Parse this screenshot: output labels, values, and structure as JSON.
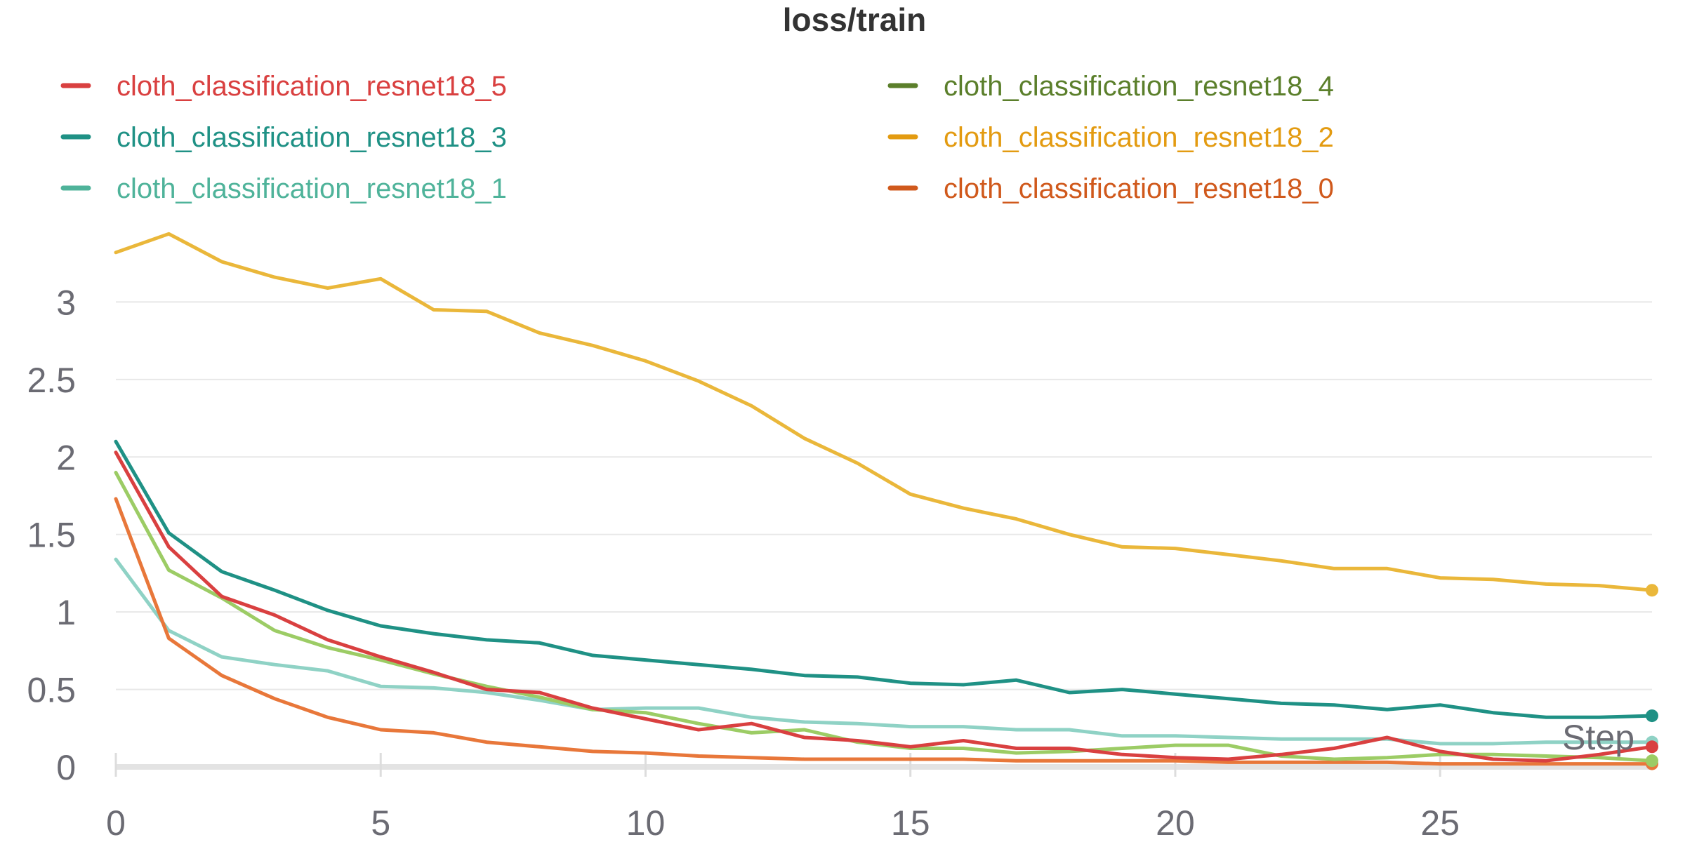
{
  "chart_data": {
    "type": "line",
    "title": "loss/train",
    "xlabel": "Step",
    "ylabel": "",
    "xlim": [
      0,
      29
    ],
    "ylim": [
      0,
      3.5
    ],
    "x_ticks": [
      "0",
      "5",
      "10",
      "15",
      "20",
      "25"
    ],
    "y_ticks": [
      "0",
      "0.5",
      "1",
      "1.5",
      "2",
      "2.5",
      "3"
    ],
    "grid": true,
    "legend_placement": "top",
    "x": [
      0,
      1,
      2,
      3,
      4,
      5,
      6,
      7,
      8,
      9,
      10,
      11,
      12,
      13,
      14,
      15,
      16,
      17,
      18,
      19,
      20,
      21,
      22,
      23,
      24,
      25,
      26,
      27,
      28,
      29
    ],
    "series": [
      {
        "name": "cloth_classification_resnet18_5",
        "color": "#d94040",
        "legend_color": "#d94040",
        "values": [
          2.03,
          1.42,
          1.1,
          0.98,
          0.82,
          0.71,
          0.61,
          0.5,
          0.48,
          0.38,
          0.31,
          0.24,
          0.28,
          0.19,
          0.17,
          0.13,
          0.17,
          0.12,
          0.12,
          0.08,
          0.06,
          0.05,
          0.08,
          0.12,
          0.19,
          0.1,
          0.05,
          0.04,
          0.08,
          0.13
        ]
      },
      {
        "name": "cloth_classification_resnet18_4",
        "color": "#9ccc65",
        "legend_color": "#5b7f2b",
        "values": [
          1.9,
          1.27,
          1.09,
          0.88,
          0.77,
          0.69,
          0.6,
          0.52,
          0.45,
          0.37,
          0.35,
          0.28,
          0.22,
          0.24,
          0.16,
          0.12,
          0.12,
          0.09,
          0.1,
          0.12,
          0.14,
          0.14,
          0.07,
          0.05,
          0.06,
          0.08,
          0.08,
          0.07,
          0.06,
          0.04
        ]
      },
      {
        "name": "cloth_classification_resnet18_3",
        "color": "#1f9185",
        "legend_color": "#1f9185",
        "values": [
          2.1,
          1.51,
          1.26,
          1.14,
          1.01,
          0.91,
          0.86,
          0.82,
          0.8,
          0.72,
          0.69,
          0.66,
          0.63,
          0.59,
          0.58,
          0.54,
          0.53,
          0.56,
          0.48,
          0.5,
          0.47,
          0.44,
          0.41,
          0.4,
          0.37,
          0.4,
          0.35,
          0.32,
          0.32,
          0.33
        ]
      },
      {
        "name": "cloth_classification_resnet18_2",
        "color": "#eab73a",
        "legend_color": "#e39b11",
        "values": [
          3.32,
          3.44,
          3.26,
          3.16,
          3.09,
          3.15,
          2.95,
          2.94,
          2.8,
          2.72,
          2.62,
          2.49,
          2.33,
          2.12,
          1.96,
          1.76,
          1.67,
          1.6,
          1.5,
          1.42,
          1.41,
          1.37,
          1.33,
          1.28,
          1.28,
          1.22,
          1.21,
          1.18,
          1.17,
          1.14
        ]
      },
      {
        "name": "cloth_classification_resnet18_1",
        "color": "#8fd2c5",
        "legend_color": "#4fb39a",
        "values": [
          1.34,
          0.88,
          0.71,
          0.66,
          0.62,
          0.52,
          0.51,
          0.48,
          0.43,
          0.37,
          0.38,
          0.38,
          0.32,
          0.29,
          0.28,
          0.26,
          0.26,
          0.24,
          0.24,
          0.2,
          0.2,
          0.19,
          0.18,
          0.18,
          0.18,
          0.15,
          0.15,
          0.16,
          0.16,
          0.16
        ]
      },
      {
        "name": "cloth_classification_resnet18_0",
        "color": "#e8773a",
        "legend_color": "#d0591c",
        "values": [
          1.73,
          0.83,
          0.59,
          0.44,
          0.32,
          0.24,
          0.22,
          0.16,
          0.13,
          0.1,
          0.09,
          0.07,
          0.06,
          0.05,
          0.05,
          0.05,
          0.05,
          0.04,
          0.04,
          0.04,
          0.04,
          0.03,
          0.03,
          0.03,
          0.03,
          0.02,
          0.02,
          0.02,
          0.02,
          0.02
        ]
      }
    ]
  }
}
